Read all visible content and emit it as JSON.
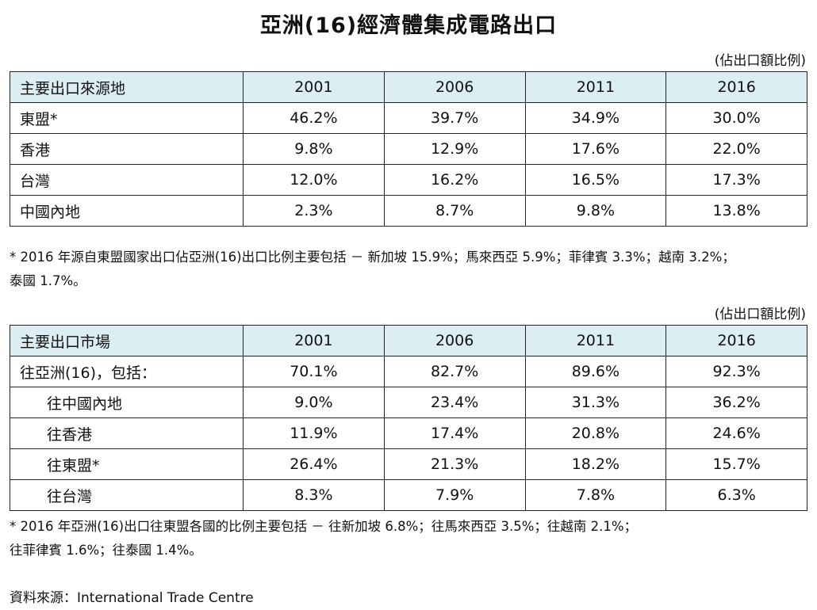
{
  "title": "亞洲(16)經濟體集成電路出口",
  "table1": {
    "unit": "(佔出口額比例)",
    "header": [
      "主要出口來源地",
      "2001",
      "2006",
      "2011",
      "2016"
    ],
    "rows": [
      {
        "label": "東盟*",
        "values": [
          "46.2%",
          "39.7%",
          "34.9%",
          "30.0%"
        ]
      },
      {
        "label": "香港",
        "values": [
          "9.8%",
          "12.9%",
          "17.6%",
          "22.0%"
        ]
      },
      {
        "label": "台灣",
        "values": [
          "12.0%",
          "16.2%",
          "16.5%",
          "17.3%"
        ]
      },
      {
        "label": "中國內地",
        "values": [
          "2.3%",
          "8.7%",
          "9.8%",
          "13.8%"
        ]
      }
    ],
    "note_line1": "* 2016 年源自東盟國家出口佔亞洲(16)出口比例主要包括 － 新加坡 15.9%；馬來西亞 5.9%；菲律賓 3.3%；越南 3.2%；",
    "note_line2": "泰國 1.7%。"
  },
  "table2": {
    "unit": "(佔出口額比例)",
    "header": [
      "主要出口市場",
      "2001",
      "2006",
      "2011",
      "2016"
    ],
    "rows": [
      {
        "label": "往亞洲(16)，包括：",
        "values": [
          "70.1%",
          "82.7%",
          "89.6%",
          "92.3%"
        ]
      },
      {
        "label": "往中國內地",
        "values": [
          "9.0%",
          "23.4%",
          "31.3%",
          "36.2%"
        ]
      },
      {
        "label": "往香港",
        "values": [
          "11.9%",
          "17.4%",
          "20.8%",
          "24.6%"
        ]
      },
      {
        "label": "往東盟*",
        "values": [
          "26.4%",
          "21.3%",
          "18.2%",
          "15.7%"
        ]
      },
      {
        "label": "往台灣",
        "values": [
          "8.3%",
          "7.9%",
          "7.8%",
          "6.3%"
        ]
      }
    ],
    "note_line1": "* 2016 年亞洲(16)出口往東盟各國的比例主要包括 － 往新加坡 6.8%；往馬來西亞 3.5%；往越南 2.1%；",
    "note_line2": "往菲律賓 1.6%；往泰國 1.4%。"
  },
  "source": "資料來源：International Trade Centre"
}
